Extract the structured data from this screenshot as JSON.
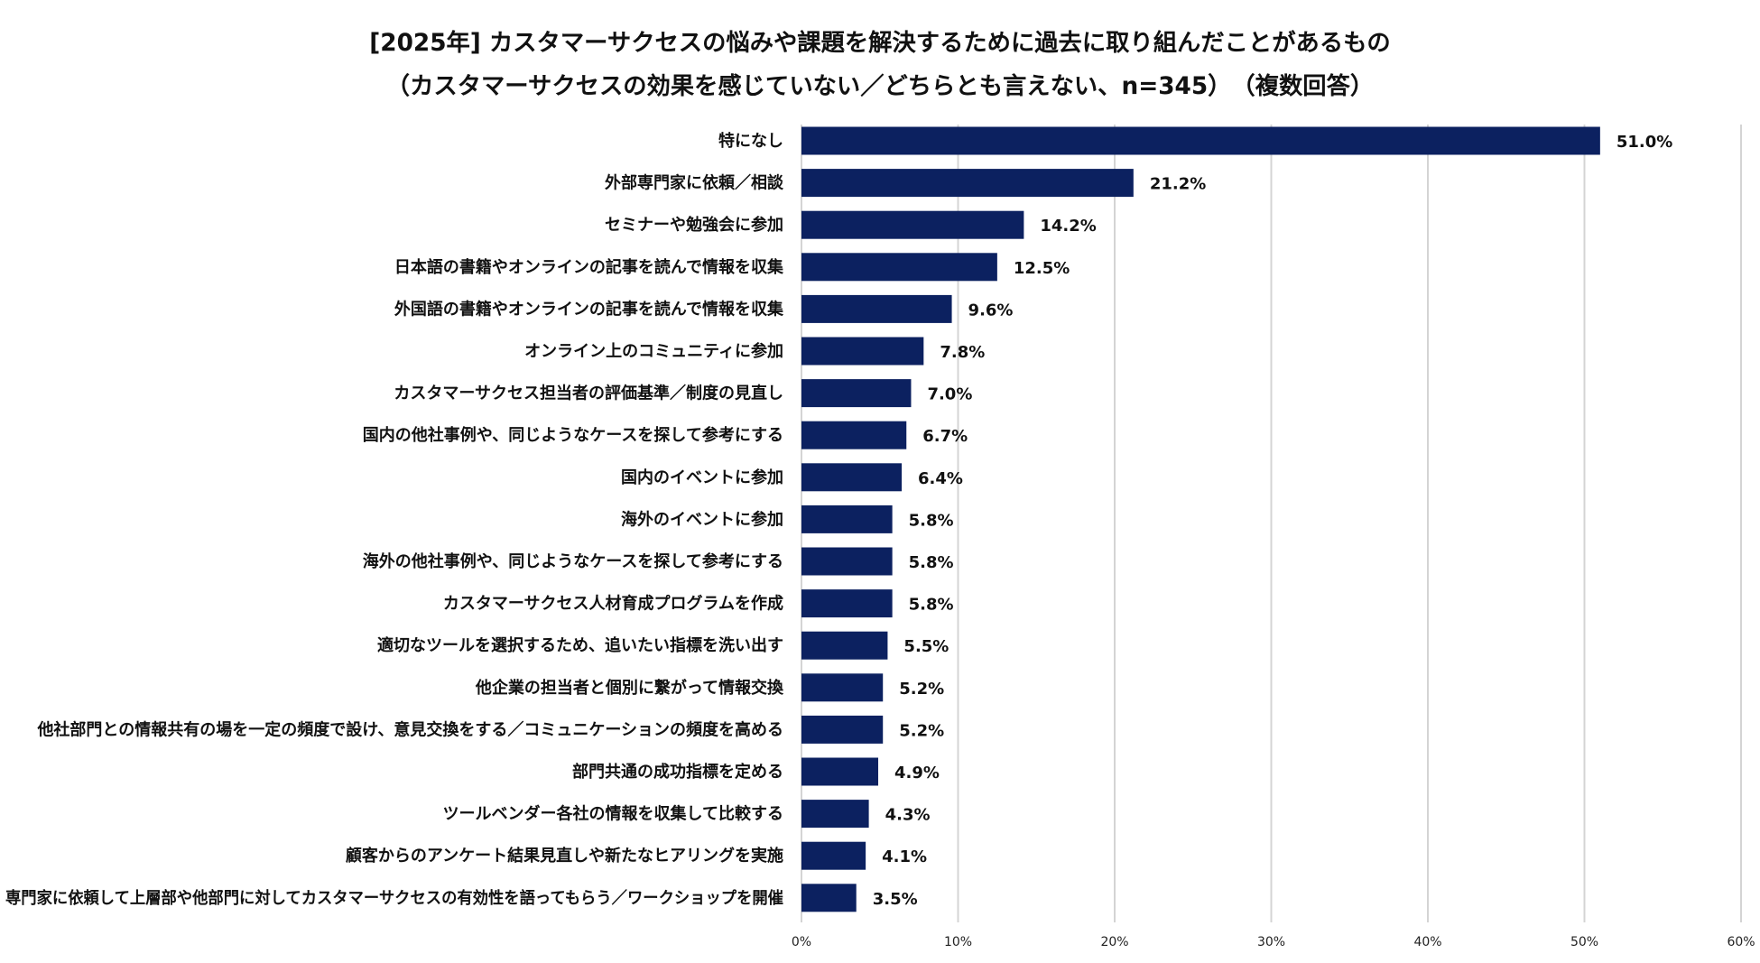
{
  "chart_data": {
    "type": "bar",
    "orientation": "horizontal",
    "title": "[2025年] カスタマーサクセスの悩みや課題を解決するために過去に取り組んだことがあるもの",
    "subtitle": "（カスタマーサクセスの効果を感じていない／どちらとも言えない、n=345）　（複数回答）",
    "categories": [
      "特になし",
      "外部専門家に依頼／相談",
      "セミナーや勉強会に参加",
      "日本語の書籍やオンラインの記事を読んで情報を収集",
      "外国語の書籍やオンラインの記事を読んで情報を収集",
      "オンライン上のコミュニティに参加",
      "カスタマーサクセス担当者の評価基準／制度の見直し",
      "国内の他社事例や、同じようなケースを探して参考にする",
      "国内のイベントに参加",
      "海外のイベントに参加",
      "海外の他社事例や、同じようなケースを探して参考にする",
      "カスタマーサクセス人材育成プログラムを作成",
      "適切なツールを選択するため、追いたい指標を洗い出す",
      "他企業の担当者と個別に繋がって情報交換",
      "他社部門との情報共有の場を一定の頻度で設け、意見交換をする／コミュニケーションの頻度を高める",
      "部門共通の成功指標を定める",
      "ツールベンダー各社の情報を収集して比較する",
      "顧客からのアンケート結果見直しや新たなヒアリングを実施",
      "専門家に依頼して上層部や他部門に対してカスタマーサクセスの有効性を語ってもらう／ワークショップを開催"
    ],
    "values": [
      51.0,
      21.2,
      14.2,
      12.5,
      9.6,
      7.8,
      7.0,
      6.7,
      6.4,
      5.8,
      5.8,
      5.8,
      5.5,
      5.2,
      5.2,
      4.9,
      4.3,
      4.1,
      3.5
    ],
    "value_labels": [
      "51.0%",
      "21.2%",
      "14.2%",
      "12.5%",
      "9.6%",
      "7.8%",
      "7.0%",
      "6.7%",
      "6.4%",
      "5.8%",
      "5.8%",
      "5.8%",
      "5.5%",
      "5.2%",
      "5.2%",
      "4.9%",
      "4.3%",
      "4.1%",
      "3.5%"
    ],
    "xlim": [
      0,
      60
    ],
    "xticks": [
      0,
      10,
      20,
      30,
      40,
      50,
      60
    ],
    "xtick_labels": [
      "0%",
      "10%",
      "20%",
      "30%",
      "40%",
      "50%",
      "60%"
    ],
    "grid": true,
    "bar_color": "#0c2160",
    "grid_color": "#d4d4d4"
  }
}
